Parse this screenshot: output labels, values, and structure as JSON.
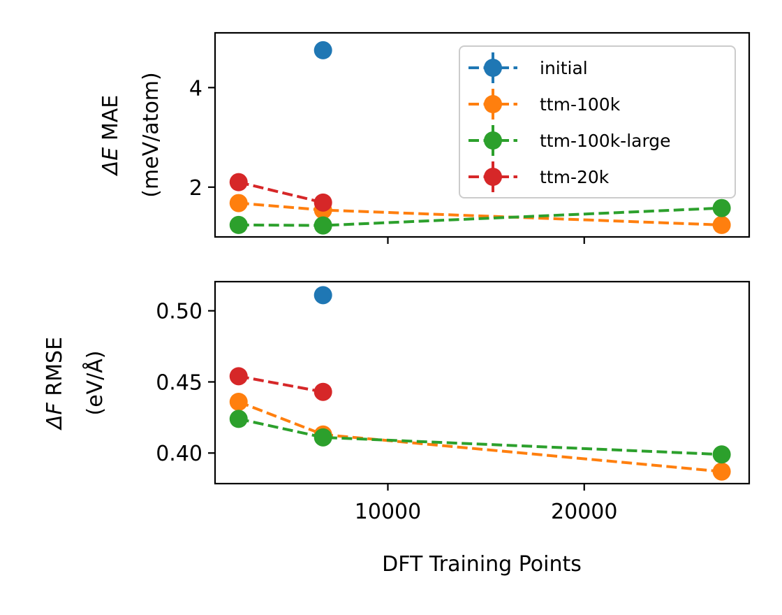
{
  "colors": {
    "initial": "#1f77b4",
    "ttm-100k": "#ff7f0e",
    "ttm-100k-large": "#2ca02c",
    "ttm-20k": "#d62728"
  },
  "chart_data": [
    {
      "type": "line",
      "panel": "top",
      "ylabel_symbol": "ΔE",
      "ylabel_line1": "MAE",
      "ylabel_line2": "(meV/atom)",
      "xlim": [
        1200,
        28400
      ],
      "ylim": [
        1.0,
        5.1
      ],
      "yticks": [
        2,
        4
      ],
      "ytick_labels": [
        "2",
        "4"
      ],
      "xticks": [
        10000,
        20000
      ],
      "xtick_labels": [],
      "legend_position": "upper right",
      "series": [
        {
          "name": "initial",
          "x": [
            6700
          ],
          "y": [
            4.75
          ]
        },
        {
          "name": "ttm-100k",
          "x": [
            2400,
            6700,
            27000
          ],
          "y": [
            1.68,
            1.54,
            1.24
          ]
        },
        {
          "name": "ttm-100k-large",
          "x": [
            2400,
            6700,
            27000
          ],
          "y": [
            1.24,
            1.23,
            1.58
          ]
        },
        {
          "name": "ttm-20k",
          "x": [
            2400,
            6700
          ],
          "y": [
            2.1,
            1.69
          ]
        }
      ]
    },
    {
      "type": "line",
      "panel": "bottom",
      "ylabel_symbol": "ΔF",
      "ylabel_line1": "RMSE",
      "ylabel_line2": "(eV/Å)",
      "xlabel": "DFT Training Points",
      "xlim": [
        1200,
        28400
      ],
      "ylim": [
        0.3785,
        0.5205
      ],
      "yticks": [
        0.4,
        0.45,
        0.5
      ],
      "ytick_labels": [
        "0.40",
        "0.45",
        "0.50"
      ],
      "xticks": [
        10000,
        20000
      ],
      "xtick_labels": [
        "10000",
        "20000"
      ],
      "series": [
        {
          "name": "initial",
          "x": [
            6700
          ],
          "y": [
            0.511
          ]
        },
        {
          "name": "ttm-100k",
          "x": [
            2400,
            6700,
            27000
          ],
          "y": [
            0.436,
            0.413,
            0.387
          ]
        },
        {
          "name": "ttm-100k-large",
          "x": [
            2400,
            6700,
            27000
          ],
          "y": [
            0.424,
            0.411,
            0.399
          ]
        },
        {
          "name": "ttm-20k",
          "x": [
            2400,
            6700
          ],
          "y": [
            0.454,
            0.443
          ]
        }
      ]
    }
  ]
}
